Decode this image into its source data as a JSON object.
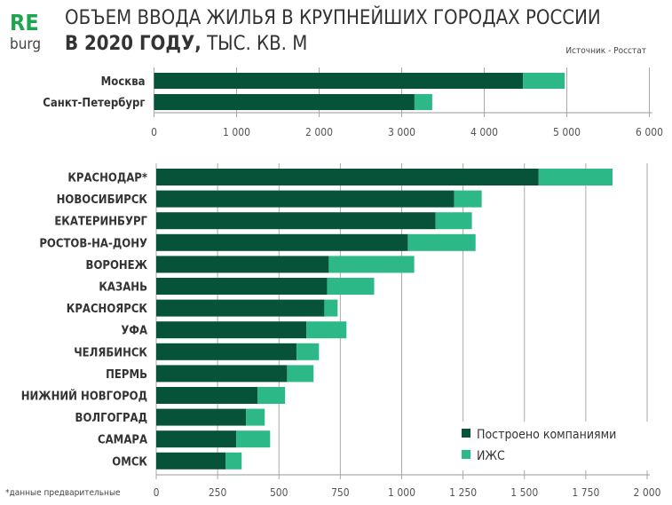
{
  "logo": {
    "top": "RE",
    "bottom": "burg"
  },
  "title_line1": "ОБЪЕМ ВВОДА ЖИЛЬЯ В КРУПНЕЙШИХ ГОРОДАХ РОССИИ",
  "title_line2_bold": "В 2020 ГОДУ,",
  "title_line2_rest": " ТЫС. КВ. М",
  "source": "Источник - Росстат",
  "footnote": "*данные предварительные",
  "colors": {
    "companies": "#06533a",
    "izhs": "#2db888",
    "logo": "#1fa54f"
  },
  "chart_data": [
    {
      "type": "bar",
      "orientation": "horizontal",
      "stacked": true,
      "categories": [
        "Москва",
        "Санкт-Петербург"
      ],
      "series": [
        {
          "name": "Построено компаниями",
          "values": [
            4470,
            3155
          ]
        },
        {
          "name": "ИЖС",
          "values": [
            505,
            215
          ]
        }
      ],
      "xlim": [
        0,
        6000
      ],
      "xticks": [
        0,
        1000,
        2000,
        3000,
        4000,
        5000,
        6000
      ],
      "xtick_labels": [
        "0",
        "1 000",
        "2 000",
        "3 000",
        "4 000",
        "5 000",
        "6 000"
      ],
      "grid": true
    },
    {
      "type": "bar",
      "orientation": "horizontal",
      "stacked": true,
      "categories": [
        "КРАСНОДАР*",
        "НОВОСИБИРСК",
        "ЕКАТЕРИНБУРГ",
        "РОСТОВ-НА-ДОНУ",
        "ВОРОНЕЖ",
        "КАЗАНЬ",
        "КРАСНОЯРСК",
        "УФА",
        "ЧЕЛЯБИНСК",
        "ПЕРМЬ",
        "НИЖНИЙ НОВГОРОД",
        "ВОЛГОГРАД",
        "САМАРА",
        "ОМСК"
      ],
      "series": [
        {
          "name": "Построено компаниями",
          "values": [
            1558,
            1214,
            1138,
            1025,
            703,
            696,
            685,
            612,
            572,
            533,
            413,
            366,
            326,
            283
          ]
        },
        {
          "name": "ИЖС",
          "values": [
            301,
            112,
            148,
            276,
            348,
            192,
            54,
            163,
            91,
            108,
            112,
            76,
            138,
            65
          ]
        }
      ],
      "xlim": [
        0,
        2000
      ],
      "xticks": [
        0,
        250,
        500,
        750,
        1000,
        1250,
        1500,
        1750,
        2000
      ],
      "xtick_labels": [
        "0",
        "250",
        "500",
        "750",
        "1 000",
        "1 250",
        "1 500",
        "1 750",
        "2 000"
      ],
      "legend": {
        "placement": "bottom-right",
        "entries": [
          "Построено компаниями",
          "ИЖС"
        ]
      },
      "grid": true
    }
  ]
}
